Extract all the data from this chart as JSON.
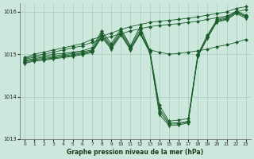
{
  "title": "Graphe pression niveau de la mer (hPa)",
  "bg_color": "#cce8dc",
  "grid_color": "#aad0c0",
  "line_color": "#1a5c2a",
  "xlim": [
    -0.5,
    23.5
  ],
  "ylim": [
    1013.0,
    1016.2
  ],
  "yticks": [
    1013,
    1014,
    1015,
    1016
  ],
  "xticks": [
    0,
    1,
    2,
    3,
    4,
    5,
    6,
    7,
    8,
    9,
    10,
    11,
    12,
    13,
    14,
    15,
    16,
    17,
    18,
    19,
    20,
    21,
    22,
    23
  ],
  "series": [
    {
      "x": [
        0,
        1,
        2,
        3,
        4,
        5,
        6,
        7,
        8,
        9,
        10,
        11,
        12,
        13,
        14,
        15,
        16,
        17,
        18,
        19,
        20,
        21,
        22,
        23
      ],
      "y": [
        1014.92,
        1015.0,
        1015.05,
        1015.1,
        1015.15,
        1015.2,
        1015.25,
        1015.35,
        1015.42,
        1015.5,
        1015.58,
        1015.65,
        1015.7,
        1015.75,
        1015.78,
        1015.8,
        1015.82,
        1015.85,
        1015.88,
        1015.92,
        1015.96,
        1016.0,
        1016.08,
        1016.12
      ],
      "marker": "D",
      "markersize": 2.0
    },
    {
      "x": [
        0,
        1,
        2,
        3,
        4,
        5,
        6,
        7,
        8,
        9,
        10,
        11,
        12,
        13,
        14,
        15,
        16,
        17,
        18,
        19,
        20,
        21,
        22,
        23
      ],
      "y": [
        1014.9,
        1014.96,
        1015.0,
        1015.05,
        1015.1,
        1015.15,
        1015.2,
        1015.28,
        1015.35,
        1015.42,
        1015.48,
        1015.55,
        1015.6,
        1015.65,
        1015.68,
        1015.7,
        1015.72,
        1015.75,
        1015.78,
        1015.82,
        1015.86,
        1015.9,
        1016.0,
        1016.05
      ],
      "marker": "D",
      "markersize": 2.0
    },
    {
      "x": [
        0,
        1,
        2,
        3,
        4,
        5,
        6,
        7,
        8,
        9,
        10,
        11,
        12,
        13,
        14,
        15,
        16,
        17,
        18,
        19,
        20,
        21,
        22,
        23
      ],
      "y": [
        1014.88,
        1014.93,
        1014.96,
        1015.0,
        1015.02,
        1015.05,
        1015.08,
        1015.15,
        1015.55,
        1015.25,
        1015.6,
        1015.2,
        1015.65,
        1015.1,
        1015.05,
        1015.0,
        1015.02,
        1015.05,
        1015.08,
        1015.12,
        1015.18,
        1015.22,
        1015.28,
        1015.35
      ],
      "marker": "D",
      "markersize": 2.0
    },
    {
      "x": [
        0,
        1,
        2,
        3,
        4,
        5,
        6,
        7,
        8,
        9,
        10,
        11,
        12,
        13,
        14,
        15,
        16,
        17,
        18,
        19,
        20,
        21,
        22,
        23
      ],
      "y": [
        1014.85,
        1014.9,
        1014.93,
        1014.96,
        1014.99,
        1015.02,
        1015.06,
        1015.1,
        1015.5,
        1015.2,
        1015.55,
        1015.18,
        1015.58,
        1015.1,
        1013.8,
        1013.42,
        1013.45,
        1013.48,
        1015.0,
        1015.45,
        1015.82,
        1015.88,
        1016.02,
        1015.92
      ],
      "marker": "D",
      "markersize": 2.0
    },
    {
      "x": [
        0,
        1,
        2,
        3,
        4,
        5,
        6,
        7,
        8,
        9,
        10,
        11,
        12,
        13,
        14,
        15,
        16,
        17,
        18,
        19,
        20,
        21,
        22,
        23
      ],
      "y": [
        1014.83,
        1014.88,
        1014.9,
        1014.93,
        1014.96,
        1014.99,
        1015.03,
        1015.08,
        1015.45,
        1015.18,
        1015.5,
        1015.15,
        1015.52,
        1015.08,
        1013.72,
        1013.38,
        1013.38,
        1013.42,
        1014.98,
        1015.42,
        1015.8,
        1015.85,
        1016.0,
        1015.9
      ],
      "marker": "D",
      "markersize": 2.0
    },
    {
      "x": [
        0,
        1,
        2,
        3,
        4,
        5,
        6,
        7,
        8,
        9,
        10,
        11,
        12,
        13,
        14,
        15,
        16,
        17,
        18,
        19,
        20,
        21,
        22,
        23
      ],
      "y": [
        1014.8,
        1014.86,
        1014.88,
        1014.91,
        1014.94,
        1014.97,
        1015.01,
        1015.06,
        1015.42,
        1015.15,
        1015.48,
        1015.12,
        1015.5,
        1015.06,
        1013.65,
        1013.35,
        1013.36,
        1013.4,
        1014.96,
        1015.4,
        1015.78,
        1015.83,
        1015.98,
        1015.88
      ],
      "marker": "D",
      "markersize": 2.0
    },
    {
      "x": [
        0,
        1,
        2,
        3,
        4,
        5,
        6,
        7,
        8,
        9,
        10,
        11,
        12,
        13,
        14,
        15,
        16,
        17,
        18,
        19,
        20,
        21,
        22,
        23
      ],
      "y": [
        1014.78,
        1014.84,
        1014.86,
        1014.89,
        1014.92,
        1014.95,
        1014.99,
        1015.04,
        1015.4,
        1015.12,
        1015.45,
        1015.1,
        1015.48,
        1015.04,
        1013.58,
        1013.32,
        1013.33,
        1013.38,
        1014.94,
        1015.38,
        1015.76,
        1015.81,
        1015.96,
        1015.85
      ],
      "marker": "v",
      "markersize": 3.5
    }
  ]
}
